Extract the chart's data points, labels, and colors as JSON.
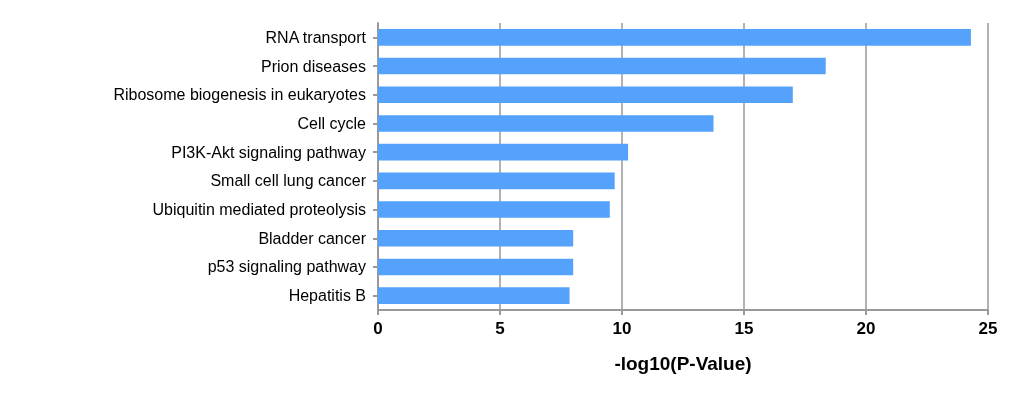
{
  "chart_data": {
    "type": "bar",
    "orientation": "horizontal",
    "xlabel": "-log10(P-Value)",
    "categories": [
      "RNA transport",
      "Prion diseases",
      "Ribosome biogenesis in eukaryotes",
      "Cell cycle",
      "PI3K-Akt signaling pathway",
      "Small cell lung cancer",
      "Ubiquitin mediated proteolysis",
      "Bladder cancer",
      "p53 signaling pathway",
      "Hepatitis B"
    ],
    "values": [
      24.3,
      18.35,
      17.0,
      13.75,
      10.25,
      9.7,
      9.5,
      8.0,
      8.0,
      7.85
    ],
    "color": "#55a2fc",
    "xlim": [
      0,
      25
    ],
    "xticks": [
      0,
      5,
      10,
      15,
      20,
      25
    ],
    "grid": "x"
  }
}
